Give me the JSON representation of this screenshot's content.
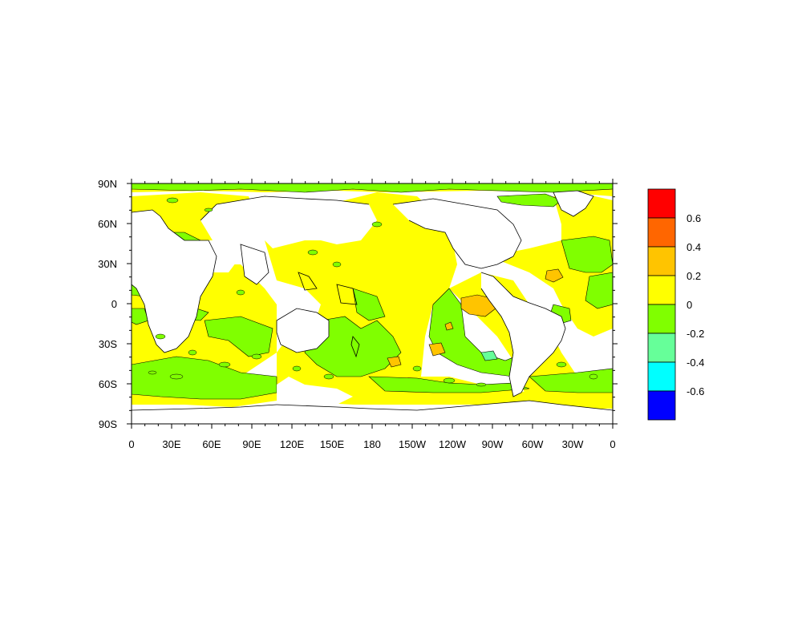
{
  "map": {
    "projection": "cylindrical-equidistant",
    "longitude_range": [
      0,
      360
    ],
    "latitude_range": [
      -90,
      90
    ],
    "x_tick_labels": [
      "0",
      "30E",
      "60E",
      "90E",
      "120E",
      "150E",
      "180",
      "150W",
      "120W",
      "90W",
      "60W",
      "30W",
      "0"
    ],
    "y_tick_labels": [
      "90N",
      "60N",
      "30N",
      "0",
      "30S",
      "60S",
      "90S"
    ],
    "missing_value_color": "#ffffff",
    "coastline_color": "#000000"
  },
  "colorbar": {
    "orientation": "vertical",
    "levels": [
      "0.6",
      "0.4",
      "0.2",
      "0",
      "-0.2",
      "-0.4",
      "-0.6"
    ],
    "colors": [
      "#ff0000",
      "#ff6600",
      "#ffc400",
      "#ffff00",
      "#80ff00",
      "#66ff99",
      "#00ffff",
      "#0000ff"
    ]
  },
  "fill_colors": {
    "band_0_to_0.2": "#ffff00",
    "band_-0.2_to_0": "#80ff00",
    "band_-0.4_to_-0.2": "#66ff99",
    "band_0.2_to_0.4": "#ffc400"
  }
}
